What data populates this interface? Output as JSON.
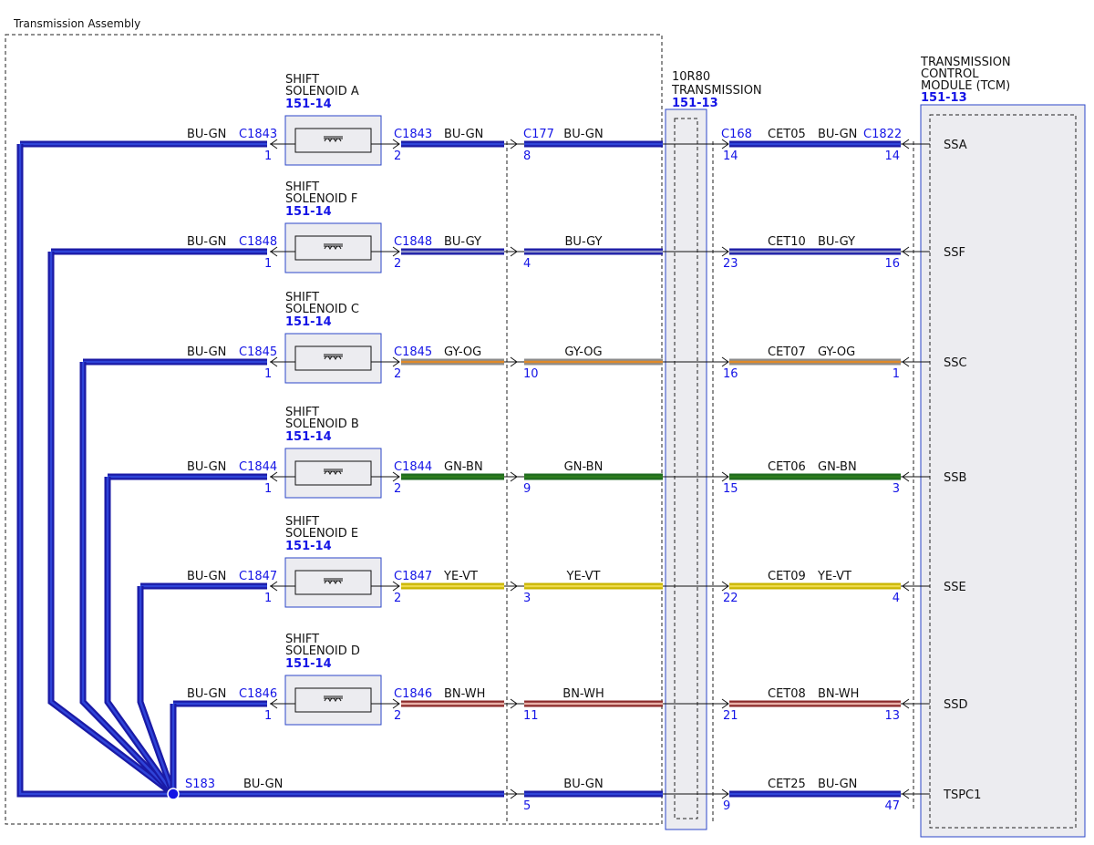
{
  "assembly_label": "Transmission Assembly",
  "transmission": {
    "line1": "10R80",
    "line2": "TRANSMISSION",
    "ref": "151-13"
  },
  "tcm": {
    "line1": "TRANSMISSION",
    "line2": "CONTROL",
    "line3": "MODULE (TCM)",
    "ref": "151-13"
  },
  "colors": {
    "BU-GN": [
      "#1a1aa6",
      "#2f44d8"
    ],
    "BU-GY": [
      "#1a1aa6",
      "#8a8fc8"
    ],
    "GY-OG": [
      "#8c8c8c",
      "#e08a2a"
    ],
    "GN-BN": [
      "#1f6b1f",
      "#2e7d1e"
    ],
    "YE-VT": [
      "#c9b400",
      "#eeda4a"
    ],
    "BN-WH": [
      "#8b2a2a",
      "#e8b0a8"
    ]
  },
  "rows": [
    {
      "solenoid_line1": "SHIFT",
      "solenoid_line2": "SOLENOID A",
      "solenoid_ref": "151-14",
      "left_color": "BU-GN",
      "left_conn": "C1843",
      "left_pin": "1",
      "right_conn": "C1843",
      "right_pin": "2",
      "right_color": "BU-GN",
      "c177_label": "C177",
      "c177_pin": "8",
      "mid_color": "BU-GN",
      "c168_label": "C168",
      "c168_pin": "14",
      "circuit": "CET05",
      "tcm_color": "BU-GN",
      "c1822_label": "C1822",
      "c1822_pin": "14",
      "signal": "SSA"
    },
    {
      "solenoid_line1": "SHIFT",
      "solenoid_line2": "SOLENOID F",
      "solenoid_ref": "151-14",
      "left_color": "BU-GN",
      "left_conn": "C1848",
      "left_pin": "1",
      "right_conn": "C1848",
      "right_pin": "2",
      "right_color": "BU-GY",
      "c177_label": "",
      "c177_pin": "4",
      "mid_color": "BU-GY",
      "c168_label": "",
      "c168_pin": "23",
      "circuit": "CET10",
      "tcm_color": "BU-GY",
      "c1822_label": "",
      "c1822_pin": "16",
      "signal": "SSF"
    },
    {
      "solenoid_line1": "SHIFT",
      "solenoid_line2": "SOLENOID C",
      "solenoid_ref": "151-14",
      "left_color": "BU-GN",
      "left_conn": "C1845",
      "left_pin": "1",
      "right_conn": "C1845",
      "right_pin": "2",
      "right_color": "GY-OG",
      "c177_label": "",
      "c177_pin": "10",
      "mid_color": "GY-OG",
      "c168_label": "",
      "c168_pin": "16",
      "circuit": "CET07",
      "tcm_color": "GY-OG",
      "c1822_label": "",
      "c1822_pin": "1",
      "signal": "SSC"
    },
    {
      "solenoid_line1": "SHIFT",
      "solenoid_line2": "SOLENOID B",
      "solenoid_ref": "151-14",
      "left_color": "BU-GN",
      "left_conn": "C1844",
      "left_pin": "1",
      "right_conn": "C1844",
      "right_pin": "2",
      "right_color": "GN-BN",
      "c177_label": "",
      "c177_pin": "9",
      "mid_color": "GN-BN",
      "c168_label": "",
      "c168_pin": "15",
      "circuit": "CET06",
      "tcm_color": "GN-BN",
      "c1822_label": "",
      "c1822_pin": "3",
      "signal": "SSB"
    },
    {
      "solenoid_line1": "SHIFT",
      "solenoid_line2": "SOLENOID E",
      "solenoid_ref": "151-14",
      "left_color": "BU-GN",
      "left_conn": "C1847",
      "left_pin": "1",
      "right_conn": "C1847",
      "right_pin": "2",
      "right_color": "YE-VT",
      "c177_label": "",
      "c177_pin": "3",
      "mid_color": "YE-VT",
      "c168_label": "",
      "c168_pin": "22",
      "circuit": "CET09",
      "tcm_color": "YE-VT",
      "c1822_label": "",
      "c1822_pin": "4",
      "signal": "SSE"
    },
    {
      "solenoid_line1": "SHIFT",
      "solenoid_line2": "SOLENOID D",
      "solenoid_ref": "151-14",
      "left_color": "BU-GN",
      "left_conn": "C1846",
      "left_pin": "1",
      "right_conn": "C1846",
      "right_pin": "2",
      "right_color": "BN-WH",
      "c177_label": "",
      "c177_pin": "11",
      "mid_color": "BN-WH",
      "c168_label": "",
      "c168_pin": "21",
      "circuit": "CET08",
      "tcm_color": "BN-WH",
      "c1822_label": "",
      "c1822_pin": "13",
      "signal": "SSD"
    }
  ],
  "bottom_row": {
    "splice": "S183",
    "left_color": "BU-GN",
    "c177_pin": "5",
    "mid_color": "BU-GN",
    "c168_pin": "9",
    "circuit": "CET25",
    "tcm_color": "BU-GN",
    "c1822_pin": "47",
    "signal": "TSPC1"
  }
}
